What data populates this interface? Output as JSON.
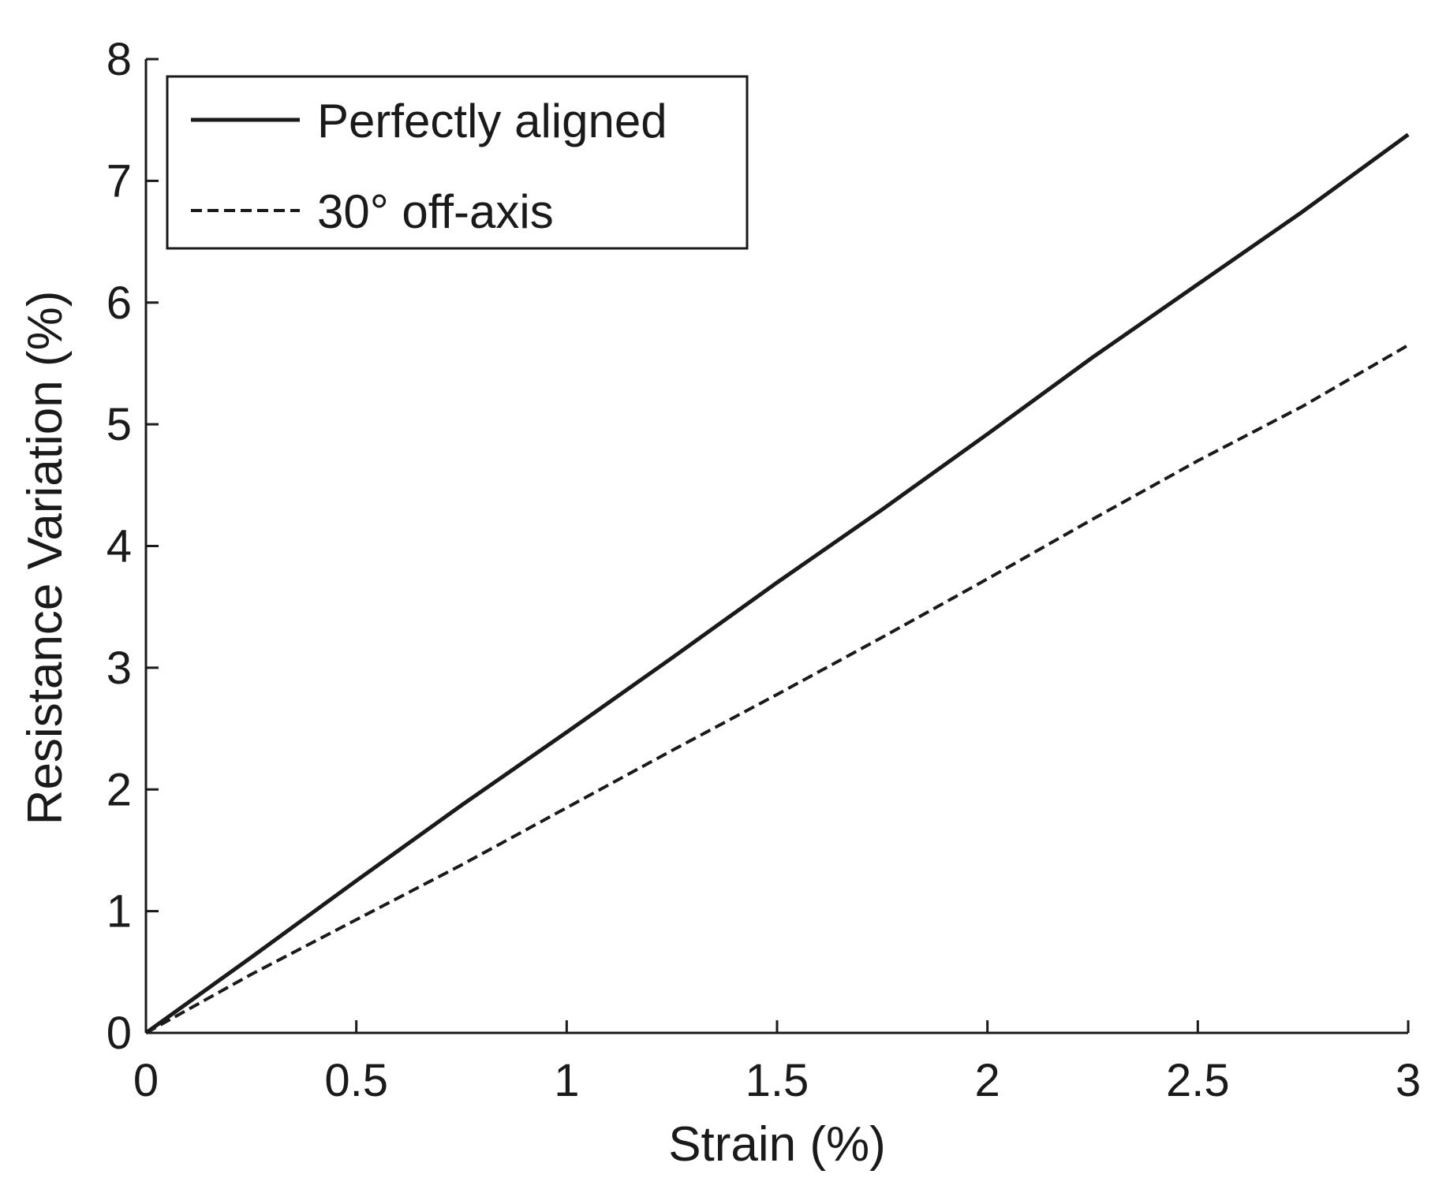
{
  "chart_data": {
    "type": "line",
    "title": "",
    "xlabel": "Strain (%)",
    "ylabel": "Resistance Variation (%)",
    "xlim": [
      0,
      3
    ],
    "ylim": [
      0,
      8
    ],
    "xticks": [
      "0",
      "0.5",
      "1",
      "1.5",
      "2",
      "2.5",
      "3"
    ],
    "yticks": [
      "0",
      "1",
      "2",
      "3",
      "4",
      "5",
      "6",
      "7",
      "8"
    ],
    "grid": false,
    "legend_position": "top-left",
    "series": [
      {
        "name": "Perfectly aligned",
        "style": "solid",
        "color": "#1a1a1a",
        "x": [
          0,
          0.25,
          0.5,
          0.75,
          1.0,
          1.25,
          1.5,
          1.75,
          2.0,
          2.25,
          2.5,
          2.75,
          3.0
        ],
        "y": [
          0,
          0.62,
          1.25,
          1.87,
          2.47,
          3.08,
          3.7,
          4.3,
          4.92,
          5.55,
          6.15,
          6.75,
          7.38
        ]
      },
      {
        "name": "30° off-axis",
        "style": "dashed",
        "color": "#1a1a1a",
        "x": [
          0,
          0.25,
          0.5,
          0.75,
          1.0,
          1.25,
          1.5,
          1.75,
          2.0,
          2.25,
          2.5,
          2.75,
          3.0
        ],
        "y": [
          0,
          0.48,
          0.93,
          1.38,
          1.85,
          2.32,
          2.78,
          3.25,
          3.73,
          4.22,
          4.7,
          5.15,
          5.65
        ]
      }
    ]
  }
}
